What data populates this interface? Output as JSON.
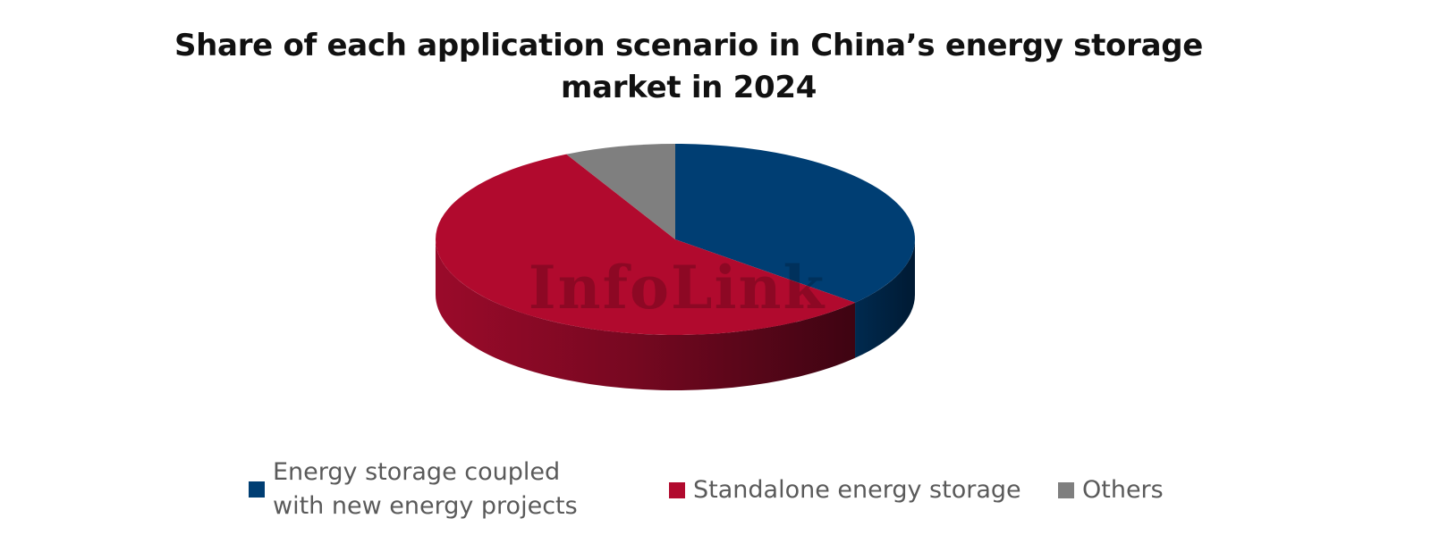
{
  "chart_data": {
    "type": "pie",
    "title": "Share of each application scenario in China’s energy storage market in 2024",
    "categories": [
      "Energy storage coupled with new energy projects",
      "Standalone energy storage",
      "Others"
    ],
    "values": [
      36.5,
      56.0,
      7.5
    ],
    "unit": "%",
    "colors": [
      "#003E73",
      "#B10A2E",
      "#7F7F7F"
    ],
    "legend_position": "bottom",
    "watermark": "InfoLink"
  }
}
